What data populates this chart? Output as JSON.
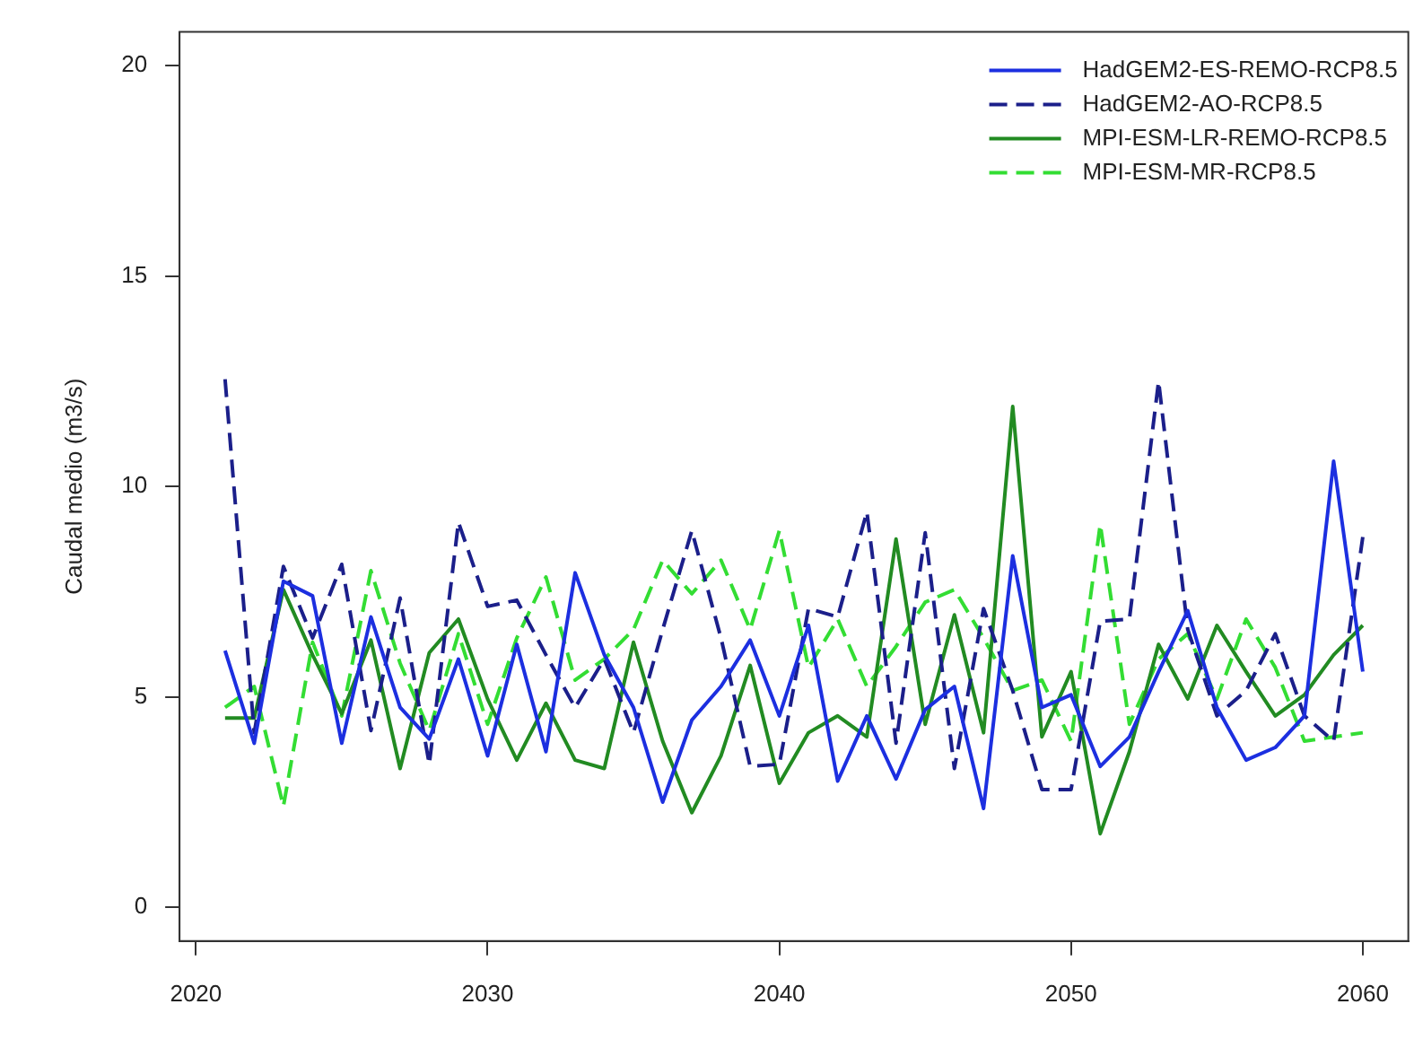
{
  "chart_data": {
    "type": "line",
    "ylabel": "Caudal medio (m3/s)",
    "x": [
      2021,
      2022,
      2023,
      2024,
      2025,
      2026,
      2027,
      2028,
      2029,
      2030,
      2031,
      2032,
      2033,
      2034,
      2035,
      2036,
      2037,
      2038,
      2039,
      2040,
      2041,
      2042,
      2043,
      2044,
      2045,
      2046,
      2047,
      2048,
      2049,
      2050,
      2051,
      2052,
      2053,
      2054,
      2055,
      2056,
      2057,
      2058,
      2059,
      2060
    ],
    "xlim": [
      2019.44,
      2061.56
    ],
    "xticks": [
      2020,
      2030,
      2040,
      2050,
      2060
    ],
    "ylim": [
      -0.8,
      20.8
    ],
    "yticks": [
      0,
      5,
      10,
      15,
      20
    ],
    "grid": false,
    "legend": "top right",
    "marker": "none",
    "series": [
      {
        "name": "HadGEM2-ES-REMO-RCP8.5",
        "color": "#1c2fe0",
        "line_style": "solid",
        "values": [
          6.1,
          3.9,
          7.75,
          7.4,
          3.9,
          6.9,
          4.75,
          4.0,
          5.9,
          3.6,
          6.25,
          3.7,
          7.95,
          6.0,
          4.75,
          2.5,
          4.45,
          5.25,
          6.35,
          4.55,
          6.7,
          3.0,
          4.55,
          3.05,
          4.7,
          5.25,
          2.35,
          8.35,
          4.75,
          5.05,
          3.35,
          4.05,
          5.6,
          7.05,
          4.75,
          3.5,
          3.8,
          4.55,
          10.6,
          5.6
        ]
      },
      {
        "name": "HadGEM2-AO-RCP8.5",
        "color": "#1b1f8a",
        "line_style": "dashed",
        "values": [
          12.55,
          4.15,
          8.1,
          6.4,
          8.15,
          4.2,
          7.35,
          3.4,
          9.15,
          7.15,
          7.3,
          6.0,
          4.75,
          5.9,
          4.15,
          6.6,
          8.95,
          6.4,
          3.35,
          3.4,
          7.1,
          6.9,
          9.4,
          3.9,
          8.9,
          3.3,
          7.1,
          5.15,
          2.8,
          2.8,
          6.8,
          6.85,
          12.5,
          6.6,
          4.55,
          5.15,
          6.5,
          4.55,
          3.95,
          8.8
        ]
      },
      {
        "name": "MPI-ESM-LR-REMO-RCP8.5",
        "color": "#228b22",
        "line_style": "solid",
        "values": [
          4.5,
          4.5,
          7.55,
          6.0,
          4.6,
          6.35,
          3.3,
          6.05,
          6.85,
          4.95,
          3.5,
          4.85,
          3.5,
          3.3,
          6.3,
          3.95,
          2.25,
          3.6,
          5.75,
          2.95,
          4.15,
          4.55,
          4.05,
          8.75,
          4.35,
          6.95,
          4.15,
          11.9,
          4.05,
          5.6,
          1.75,
          3.7,
          6.25,
          4.95,
          6.7,
          5.6,
          4.55,
          5.05,
          6.0,
          6.7
        ]
      },
      {
        "name": "MPI-ESM-MR-RCP8.5",
        "color": "#33dd33",
        "line_style": "dashed",
        "values": [
          4.75,
          5.25,
          2.4,
          6.3,
          4.55,
          8.0,
          5.8,
          4.2,
          6.5,
          4.35,
          6.4,
          7.85,
          5.4,
          5.9,
          6.6,
          8.25,
          7.45,
          8.25,
          6.6,
          8.95,
          5.7,
          6.85,
          5.25,
          6.2,
          7.25,
          7.55,
          6.4,
          5.15,
          5.4,
          3.95,
          9.1,
          4.35,
          5.9,
          6.5,
          4.95,
          6.85,
          5.7,
          3.95,
          4.05,
          4.15
        ]
      }
    ]
  }
}
